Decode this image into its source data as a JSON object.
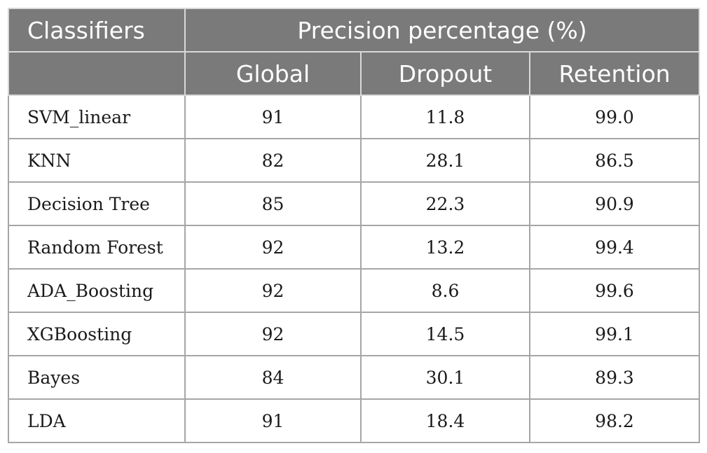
{
  "table": {
    "header_classifiers": "Classifiers",
    "header_group": "Precision percentage (%)",
    "sub_headers": [
      "Global",
      "Dropout",
      "Retention"
    ],
    "rows": [
      {
        "classifier": "SVM_linear",
        "global": "91",
        "dropout": "11.8",
        "retention": "99.0"
      },
      {
        "classifier": "KNN",
        "global": "82",
        "dropout": "28.1",
        "retention": "86.5"
      },
      {
        "classifier": "Decision Tree",
        "global": "85",
        "dropout": "22.3",
        "retention": "90.9"
      },
      {
        "classifier": "Random Forest",
        "global": "92",
        "dropout": "13.2",
        "retention": "99.4"
      },
      {
        "classifier": "ADA_Boosting",
        "global": "92",
        "dropout": "8.6",
        "retention": "99.6"
      },
      {
        "classifier": "XGBoosting",
        "global": "92",
        "dropout": "14.5",
        "retention": "99.1"
      },
      {
        "classifier": "Bayes",
        "global": "84",
        "dropout": "30.1",
        "retention": "89.3"
      },
      {
        "classifier": "LDA",
        "global": "91",
        "dropout": "18.4",
        "retention": "98.2"
      }
    ]
  },
  "colors": {
    "header_background": "#7a7a7a",
    "header_text": "#ffffff",
    "header_border": "#d9d9d9",
    "cell_border": "#a6a6a6"
  }
}
